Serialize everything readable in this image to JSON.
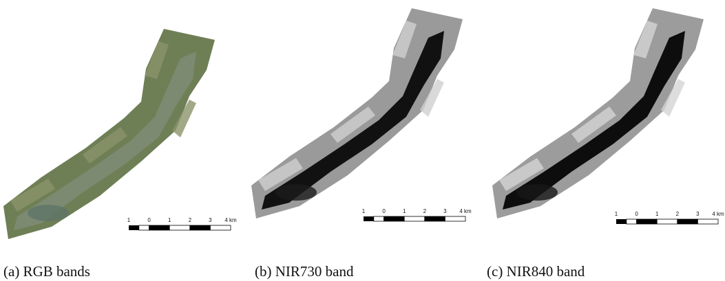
{
  "panels": [
    {
      "caption": "(a) RGB bands",
      "scale_labels": [
        "1",
        "0",
        "1",
        "2",
        "3",
        "4 km"
      ]
    },
    {
      "caption": "(b) NIR730 band",
      "scale_labels": [
        "1",
        "0",
        "1",
        "2",
        "3",
        "4 km"
      ]
    },
    {
      "caption": "(c) NIR840 band",
      "scale_labels": [
        "1",
        "0",
        "1",
        "2",
        "3",
        "4 km"
      ]
    }
  ]
}
